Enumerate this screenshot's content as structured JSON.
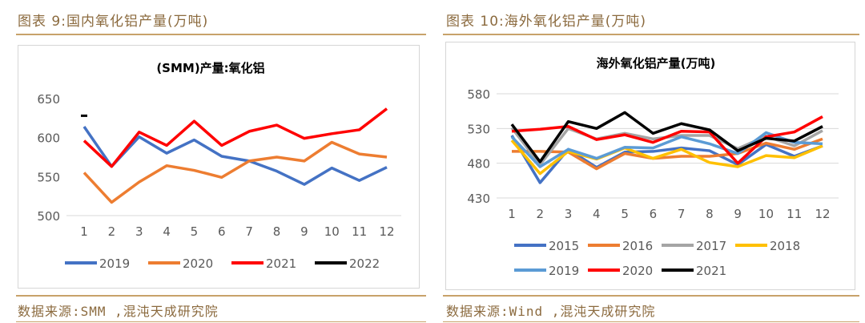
{
  "left_figure": {
    "caption": "图表 9:国内氧化铝产量(万吨)",
    "source": "数据来源:SMM ,混沌天成研究院"
  },
  "right_figure": {
    "caption": "图表 10:海外氧化铝产量(万吨)",
    "source": "数据来源:Wind ,混沌天成研究院"
  },
  "chart_data": [
    {
      "type": "line",
      "title": "(SMM)产量:氧化铝",
      "xlabel": "",
      "ylabel": "",
      "categories": [
        "1",
        "2",
        "3",
        "4",
        "5",
        "6",
        "7",
        "8",
        "9",
        "10",
        "11",
        "12"
      ],
      "ylim": [
        500,
        650
      ],
      "yticks": [
        500,
        550,
        600,
        650
      ],
      "grid": false,
      "legend": "bottom",
      "series": [
        {
          "name": "2019",
          "color": "#4472c4",
          "values": [
            614,
            563,
            601,
            580,
            597,
            576,
            570,
            557,
            540,
            561,
            545,
            562
          ]
        },
        {
          "name": "2020",
          "color": "#ed7d31",
          "values": [
            555,
            517,
            543,
            564,
            558,
            549,
            570,
            575,
            570,
            594,
            579,
            575
          ]
        },
        {
          "name": "2021",
          "color": "#ff0000",
          "values": [
            596,
            563,
            607,
            590,
            621,
            590,
            608,
            616,
            599,
            605,
            610,
            637
          ]
        },
        {
          "name": "2022",
          "color": "#000000",
          "values": [
            628,
            null,
            null,
            null,
            null,
            null,
            null,
            null,
            null,
            null,
            null,
            null
          ]
        }
      ]
    },
    {
      "type": "line",
      "title": "海外氧化铝产量(万吨)",
      "xlabel": "",
      "ylabel": "",
      "categories": [
        "1",
        "2",
        "3",
        "4",
        "5",
        "6",
        "7",
        "8",
        "9",
        "10",
        "11",
        "12"
      ],
      "ylim": [
        430,
        580
      ],
      "yticks": [
        430,
        480,
        530,
        580
      ],
      "grid": true,
      "legend": "bottom",
      "series": [
        {
          "name": "2015",
          "color": "#4472c4",
          "values": [
            520,
            452,
            500,
            474,
            496,
            497,
            502,
            498,
            478,
            507,
            490,
            505
          ]
        },
        {
          "name": "2016",
          "color": "#ed7d31",
          "values": [
            497,
            497,
            496,
            472,
            494,
            487,
            490,
            490,
            494,
            509,
            500,
            515
          ]
        },
        {
          "name": "2017",
          "color": "#a5a5a5",
          "values": [
            531,
            478,
            530,
            515,
            523,
            515,
            520,
            520,
            501,
            519,
            505,
            527
          ]
        },
        {
          "name": "2018",
          "color": "#ffc000",
          "values": [
            513,
            465,
            497,
            486,
            502,
            487,
            500,
            481,
            475,
            491,
            488,
            505
          ]
        },
        {
          "name": "2019",
          "color": "#5b9bd5",
          "values": [
            518,
            475,
            500,
            487,
            503,
            502,
            518,
            508,
            494,
            524,
            510,
            508
          ]
        },
        {
          "name": "2020",
          "color": "#ff0000",
          "values": [
            526,
            529,
            533,
            514,
            521,
            510,
            526,
            525,
            480,
            518,
            525,
            547
          ]
        },
        {
          "name": "2021",
          "color": "#000000",
          "values": [
            536,
            482,
            540,
            530,
            553,
            523,
            537,
            528,
            498,
            516,
            512,
            533
          ]
        }
      ]
    }
  ]
}
